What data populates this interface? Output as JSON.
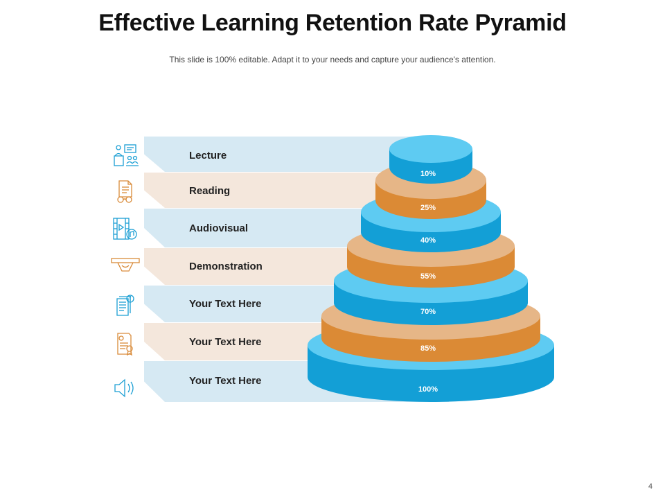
{
  "header": {
    "title": "Effective Learning Retention Rate Pyramid",
    "subtitle": "This slide is 100% editable. Adapt it to your needs and capture your audience's attention."
  },
  "rows": [
    {
      "label": "Lecture",
      "icon": "lecture-icon"
    },
    {
      "label": "Reading",
      "icon": "reading-icon"
    },
    {
      "label": "Audiovisual",
      "icon": "audiovisual-icon"
    },
    {
      "label": "Demonstration",
      "icon": "demonstration-icon"
    },
    {
      "label": "Your Text Here",
      "icon": "document-info-icon"
    },
    {
      "label": "Your Text Here",
      "icon": "certificate-icon"
    },
    {
      "label": "Your Text Here",
      "icon": "speaker-icon"
    }
  ],
  "tiers": [
    {
      "pct": "10%"
    },
    {
      "pct": "25%"
    },
    {
      "pct": "40%"
    },
    {
      "pct": "55%"
    },
    {
      "pct": "70%"
    },
    {
      "pct": "85%"
    },
    {
      "pct": "100%"
    }
  ],
  "colors": {
    "blue_band": "#d6e9f3",
    "beige_band": "#f4e7dc",
    "blue_top": "#5ecbf2",
    "blue_side": "#139fd6",
    "orange_top": "#e6b687",
    "orange_side": "#db8a35",
    "icon_blue": "#1b9fd4",
    "icon_orange": "#d98b3a"
  },
  "footer": {
    "page_number": "4"
  }
}
